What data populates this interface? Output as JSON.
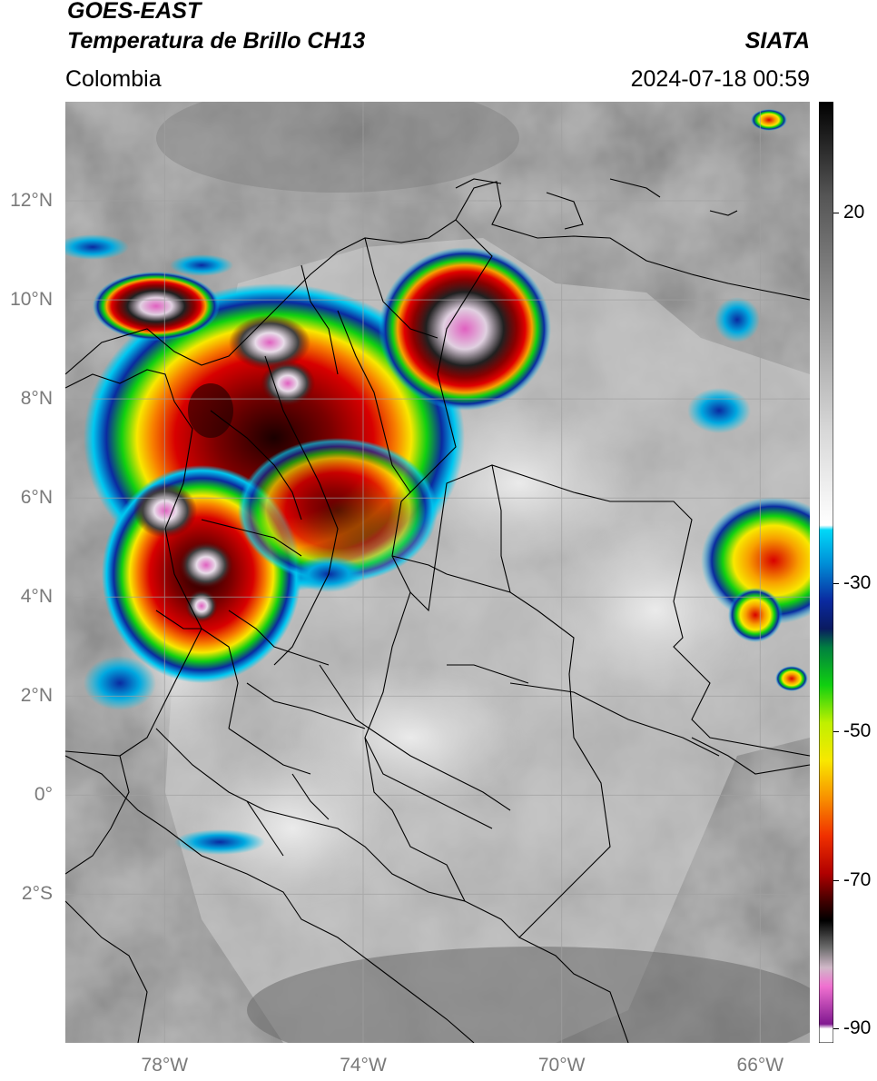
{
  "header": {
    "satellite": "GOES-EAST",
    "product": "Temperatura de Brillo CH13",
    "region": "Colombia",
    "agency": "SIATA",
    "timestamp": "2024-07-18 00:59"
  },
  "map": {
    "lon_range": [
      -80,
      -65
    ],
    "lat_range": [
      -5,
      14
    ],
    "lat_ticks": [
      {
        "value": 12,
        "label": "12°N"
      },
      {
        "value": 10,
        "label": "10°N"
      },
      {
        "value": 8,
        "label": "8°N"
      },
      {
        "value": 6,
        "label": "6°N"
      },
      {
        "value": 4,
        "label": "4°N"
      },
      {
        "value": 2,
        "label": "2°N"
      },
      {
        "value": 0,
        "label": "0°"
      },
      {
        "value": -2,
        "label": "2°S"
      }
    ],
    "lon_ticks": [
      {
        "value": -78,
        "label": "78°W"
      },
      {
        "value": -74,
        "label": "74°W"
      },
      {
        "value": -70,
        "label": "70°W"
      },
      {
        "value": -66,
        "label": "66°W"
      }
    ],
    "gridlines": true
  },
  "colorbar": {
    "range": [
      -92,
      35
    ],
    "ticks": [
      {
        "value": 20,
        "label": "20"
      },
      {
        "value": -30,
        "label": "-30"
      },
      {
        "value": -50,
        "label": "-50"
      },
      {
        "value": -70,
        "label": "-70"
      },
      {
        "value": -90,
        "label": "-90"
      }
    ],
    "colors": {
      "warm": "#555555",
      "cold_gray": "#e8e8e8",
      "cyan": "#00c8f0",
      "blue": "#0a2aa0",
      "green": "#10d010",
      "yellow": "#f8e800",
      "orange": "#f88000",
      "red": "#d80000",
      "dark_red": "#500000",
      "black": "#000000",
      "pink": "#e060c0",
      "purple": "#701880"
    }
  }
}
